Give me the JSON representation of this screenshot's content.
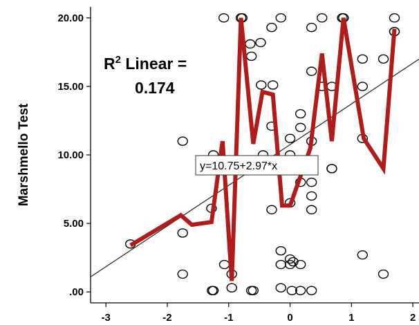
{
  "chart_data": {
    "type": "scatter",
    "ylabel": "Marshmello Test",
    "xlabel": "",
    "xlim": [
      -3.25,
      2.1
    ],
    "ylim": [
      -0.8,
      20.8
    ],
    "x_ticks": [
      "-3",
      "-2",
      "-1",
      "0",
      "1",
      "2"
    ],
    "y_ticks": [
      ".00",
      "5.00",
      "10.00",
      "15.00",
      "20.00"
    ],
    "grid": false,
    "colors": {
      "points": "#000000",
      "fit_line": "#222222",
      "trend_line": "#b01c1c"
    },
    "r2_label": {
      "prefix": "R",
      "superscript": "2",
      "rest": " Linear =",
      "value": "0.174"
    },
    "equation_label": "y=10.75+2.97*x",
    "fit_line": {
      "intercept": 10.75,
      "slope": 2.97
    },
    "points": [
      [
        -2.6,
        3.5
      ],
      [
        -1.75,
        11.0
      ],
      [
        -1.75,
        4.3
      ],
      [
        -1.75,
        1.3
      ],
      [
        -1.28,
        6.1
      ],
      [
        -1.25,
        10.0
      ],
      [
        -1.27,
        0.1
      ],
      [
        -1.25,
        0.1
      ],
      [
        -1.08,
        20.0
      ],
      [
        -1.07,
        2.0
      ],
      [
        -0.95,
        1.3
      ],
      [
        -0.95,
        0.3
      ],
      [
        -0.8,
        20.0
      ],
      [
        -0.78,
        20.0
      ],
      [
        -0.65,
        18.1
      ],
      [
        -0.63,
        17.2
      ],
      [
        -0.63,
        0.1
      ],
      [
        -0.6,
        0.1
      ],
      [
        -0.48,
        18.2
      ],
      [
        -0.47,
        15.1
      ],
      [
        -0.44,
        10.0
      ],
      [
        -0.3,
        19.3
      ],
      [
        -0.28,
        15.1
      ],
      [
        -0.3,
        12.1
      ],
      [
        -0.3,
        6.0
      ],
      [
        -0.15,
        20.0
      ],
      [
        -0.15,
        3.0
      ],
      [
        -0.15,
        2.0
      ],
      [
        -0.15,
        0.3
      ],
      [
        0.0,
        11.2
      ],
      [
        0.0,
        10.0
      ],
      [
        0.0,
        6.5
      ],
      [
        0.0,
        2.4
      ],
      [
        0.0,
        2.0
      ],
      [
        0.05,
        2.2
      ],
      [
        0.03,
        0.1
      ],
      [
        0.17,
        13.0
      ],
      [
        0.17,
        12.0
      ],
      [
        0.17,
        8.0
      ],
      [
        0.17,
        2.0
      ],
      [
        0.17,
        0.1
      ],
      [
        0.35,
        19.3
      ],
      [
        0.35,
        16.1
      ],
      [
        0.35,
        11.0
      ],
      [
        0.35,
        8.0
      ],
      [
        0.35,
        7.0
      ],
      [
        0.35,
        6.0
      ],
      [
        0.35,
        0.1
      ],
      [
        0.52,
        20.0
      ],
      [
        0.52,
        15.0
      ],
      [
        0.68,
        15.0
      ],
      [
        0.68,
        9.0
      ],
      [
        0.68,
        9.0
      ],
      [
        0.85,
        20.0
      ],
      [
        0.87,
        20.0
      ],
      [
        1.18,
        17.0
      ],
      [
        1.18,
        15.0
      ],
      [
        1.18,
        11.2
      ],
      [
        1.18,
        2.7
      ],
      [
        1.52,
        17.0
      ],
      [
        1.52,
        1.3
      ],
      [
        1.7,
        20.0
      ],
      [
        1.7,
        19.0
      ],
      [
        1.7,
        19.0
      ]
    ],
    "trend_line": [
      [
        -2.6,
        3.4
      ],
      [
        -1.78,
        5.6
      ],
      [
        -1.6,
        4.9
      ],
      [
        -1.28,
        5.1
      ],
      [
        -1.1,
        11.0
      ],
      [
        -0.95,
        0.8
      ],
      [
        -0.8,
        20.0
      ],
      [
        -0.6,
        10.8
      ],
      [
        -0.45,
        14.6
      ],
      [
        -0.28,
        14.4
      ],
      [
        -0.13,
        6.3
      ],
      [
        0.0,
        6.3
      ],
      [
        0.15,
        8.2
      ],
      [
        0.33,
        10.5
      ],
      [
        0.52,
        17.4
      ],
      [
        0.68,
        11.0
      ],
      [
        0.87,
        20.0
      ],
      [
        1.2,
        11.2
      ],
      [
        1.52,
        9.0
      ],
      [
        1.7,
        19.2
      ]
    ]
  }
}
